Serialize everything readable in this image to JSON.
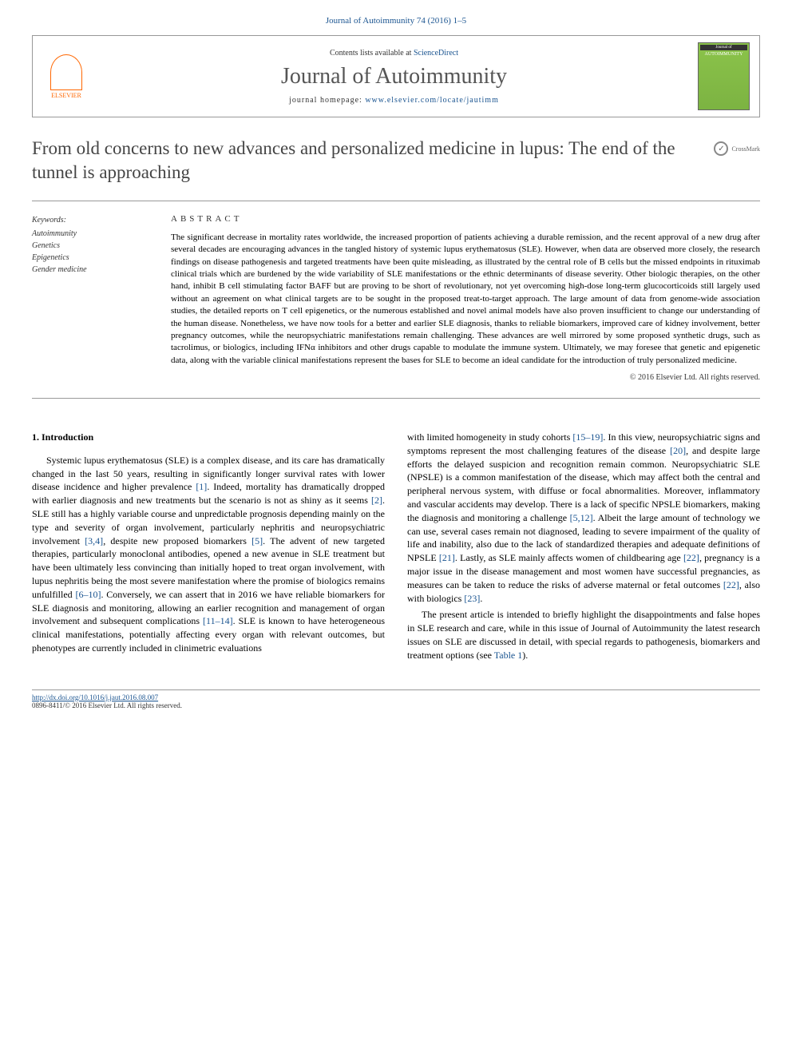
{
  "journal_ref": "Journal of Autoimmunity 74 (2016) 1–5",
  "header": {
    "elsevier_label": "ELSEVIER",
    "contents_prefix": "Contents lists available at ",
    "contents_link": "ScienceDirect",
    "journal_name": "Journal of Autoimmunity",
    "homepage_prefix": "journal homepage: ",
    "homepage_url": "www.elsevier.com/locate/jautimm",
    "cover_title": "AUTOIMMUNITY",
    "cover_prefix": "Journal of"
  },
  "crossmark_label": "CrossMark",
  "title": "From old concerns to new advances and personalized medicine in lupus: The end of the tunnel is approaching",
  "keywords": {
    "heading": "Keywords:",
    "items": [
      "Autoimmunity",
      "Genetics",
      "Epigenetics",
      "Gender medicine"
    ]
  },
  "abstract": {
    "heading": "ABSTRACT",
    "text": "The significant decrease in mortality rates worldwide, the increased proportion of patients achieving a durable remission, and the recent approval of a new drug after several decades are encouraging advances in the tangled history of systemic lupus erythematosus (SLE). However, when data are observed more closely, the research findings on disease pathogenesis and targeted treatments have been quite misleading, as illustrated by the central role of B cells but the missed endpoints in rituximab clinical trials which are burdened by the wide variability of SLE manifestations or the ethnic determinants of disease severity. Other biologic therapies, on the other hand, inhibit B cell stimulating factor BAFF but are proving to be short of revolutionary, not yet overcoming high-dose long-term glucocorticoids still largely used without an agreement on what clinical targets are to be sought in the proposed treat-to-target approach. The large amount of data from genome-wide association studies, the detailed reports on T cell epigenetics, or the numerous established and novel animal models have also proven insufficient to change our understanding of the human disease. Nonetheless, we have now tools for a better and earlier SLE diagnosis, thanks to reliable biomarkers, improved care of kidney involvement, better pregnancy outcomes, while the neuropsychiatric manifestations remain challenging. These advances are well mirrored by some proposed synthetic drugs, such as tacrolimus, or biologics, including IFNα inhibitors and other drugs capable to modulate the immune system. Ultimately, we may foresee that genetic and epigenetic data, along with the variable clinical manifestations represent the bases for SLE to become an ideal candidate for the introduction of truly personalized medicine.",
    "copyright": "© 2016 Elsevier Ltd. All rights reserved."
  },
  "body": {
    "section_heading": "1. Introduction",
    "col1_p1_a": "Systemic lupus erythematosus (SLE) is a complex disease, and its care has dramatically changed in the last 50 years, resulting in significantly longer survival rates with lower disease incidence and higher prevalence ",
    "ref1": "[1]",
    "col1_p1_b": ". Indeed, mortality has dramatically dropped with earlier diagnosis and new treatments but the scenario is not as shiny as it seems ",
    "ref2": "[2]",
    "col1_p1_c": ". SLE still has a highly variable course and unpredictable prognosis depending mainly on the type and severity of organ involvement, particularly nephritis and neuropsychiatric involvement ",
    "ref34": "[3,4]",
    "col1_p1_d": ", despite new proposed biomarkers ",
    "ref5": "[5]",
    "col1_p1_e": ". The advent of new targeted therapies, particularly monoclonal antibodies, opened a new avenue in SLE treatment but have been ultimately less convincing than initially hoped to treat organ involvement, with lupus nephritis being the most severe manifestation where the promise of biologics remains unfulfilled ",
    "ref6_10": "[6–10]",
    "col1_p1_f": ". Conversely, we can assert that in 2016 we have reliable biomarkers for SLE diagnosis and monitoring, allowing an earlier recognition and management of organ involvement and subsequent complications ",
    "ref11_14": "[11–14]",
    "col1_p1_g": ". SLE is known to have heterogeneous clinical manifestations, potentially affecting every organ with relevant outcomes, but phenotypes are currently included in clinimetric evaluations",
    "col2_p1_a": "with limited homogeneity in study cohorts ",
    "ref15_19": "[15–19]",
    "col2_p1_b": ". In this view, neuropsychiatric signs and symptoms represent the most challenging features of the disease ",
    "ref20": "[20]",
    "col2_p1_c": ", and despite large efforts the delayed suspicion and recognition remain common. Neuropsychiatric SLE (NPSLE) is a common manifestation of the disease, which may affect both the central and peripheral nervous system, with diffuse or focal abnormalities. Moreover, inflammatory and vascular accidents may develop. There is a lack of specific NPSLE biomarkers, making the diagnosis and monitoring a challenge ",
    "ref5_12": "[5,12]",
    "col2_p1_d": ". Albeit the large amount of technology we can use, several cases remain not diagnosed, leading to severe impairment of the quality of life and inability, also due to the lack of standardized therapies and adequate definitions of NPSLE ",
    "ref21": "[21]",
    "col2_p1_e": ". Lastly, as SLE mainly affects women of childbearing age ",
    "ref22a": "[22]",
    "col2_p1_f": ", pregnancy is a major issue in the disease management and most women have successful pregnancies, as measures can be taken to reduce the risks of adverse maternal or fetal outcomes ",
    "ref22b": "[22]",
    "col2_p1_g": ", also with biologics ",
    "ref23": "[23]",
    "col2_p1_h": ".",
    "col2_p2_a": "The present article is intended to briefly highlight the disappointments and false hopes in SLE research and care, while in this issue of Journal of Autoimmunity the latest research issues on SLE are discussed in detail, with special regards to pathogenesis, biomarkers and treatment options (see ",
    "table1_ref": "Table 1",
    "col2_p2_b": ")."
  },
  "footer": {
    "doi": "http://dx.doi.org/10.1016/j.jaut.2016.08.007",
    "issn_line": "0896-8411/© 2016 Elsevier Ltd. All rights reserved."
  },
  "colors": {
    "link": "#1a5490",
    "elsevier_orange": "#ff6600",
    "title_gray": "#454545",
    "border_gray": "#999999"
  }
}
